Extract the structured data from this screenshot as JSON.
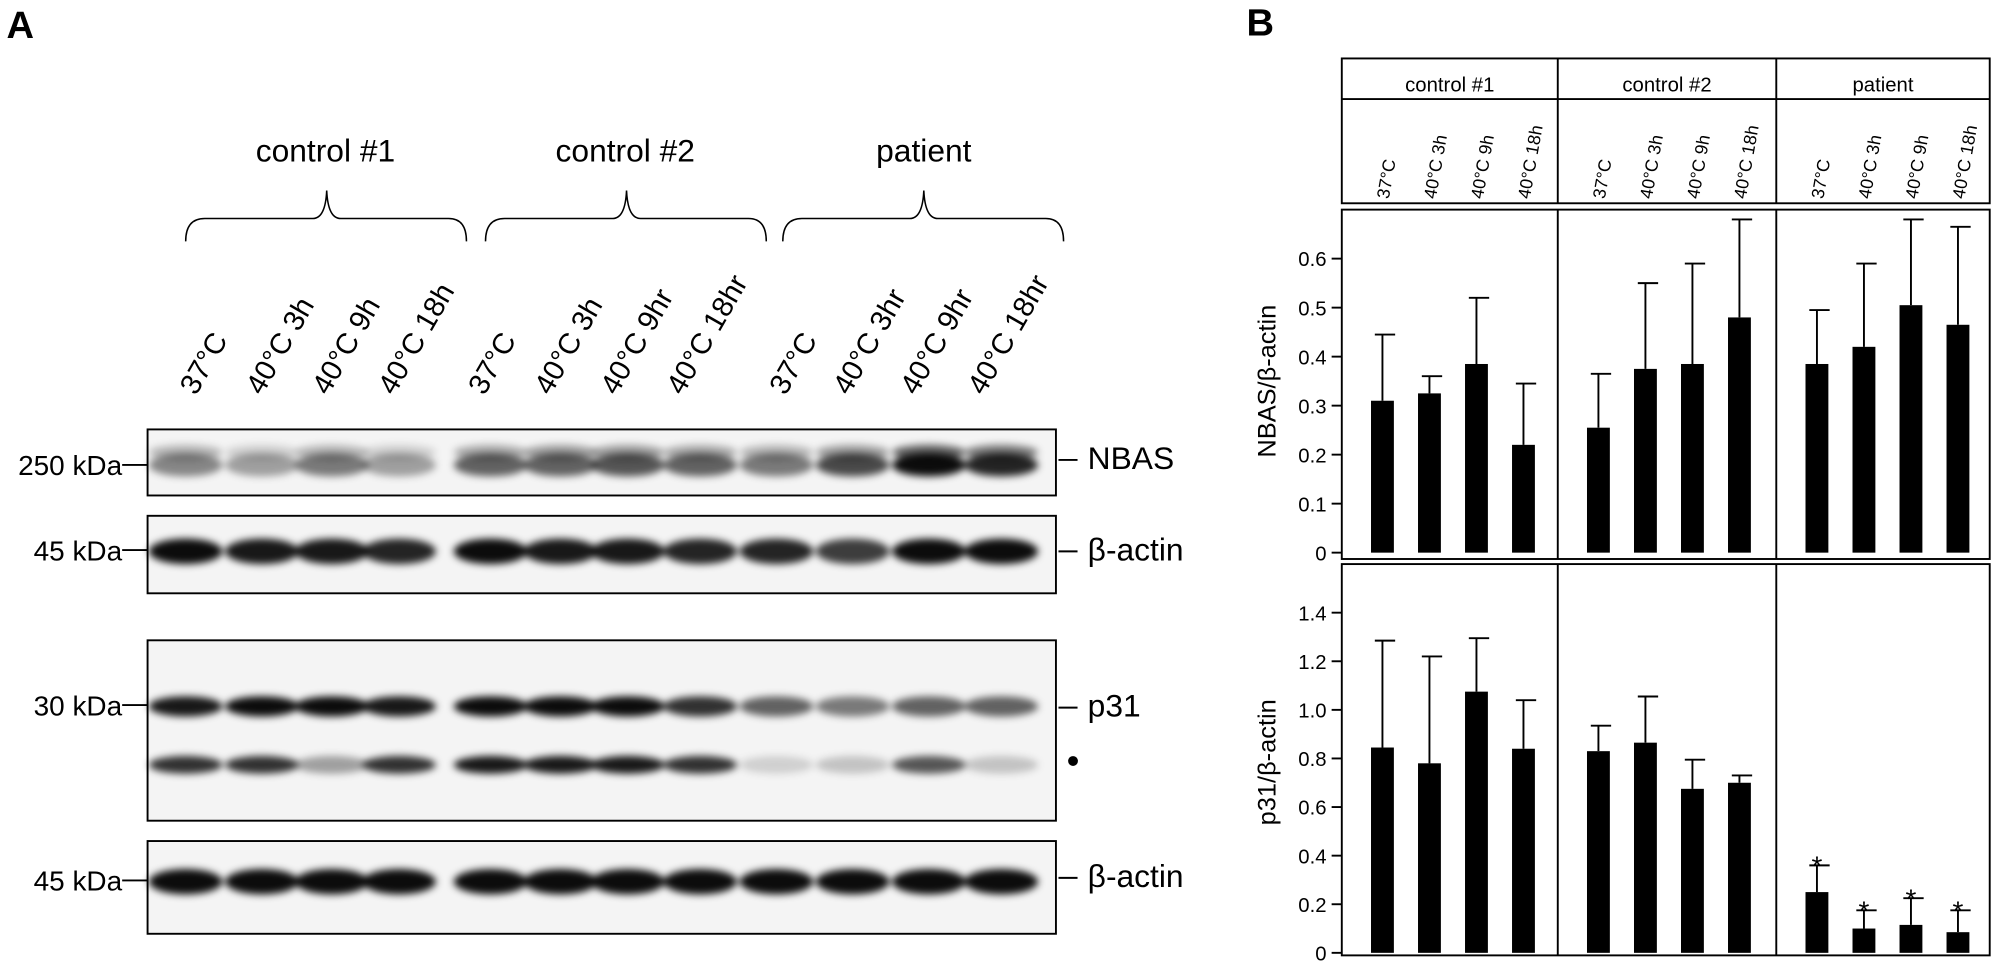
{
  "panel_a": {
    "label": "A",
    "groups": [
      "control #1",
      "control #2",
      "patient"
    ],
    "lanes": [
      "37°C",
      "40°C 3h",
      "40°C 9h",
      "40°C 18h",
      "37°C",
      "40°C 3h",
      "40°C 9hr",
      "40°C 18hr",
      "37°C",
      "40°C 3hr",
      "40°C 9hr",
      "40°C 18hr"
    ],
    "markers": [
      "250 kDa",
      "45 kDa",
      "30 kDa",
      "45 kDa"
    ],
    "blot_labels": [
      "NBAS",
      "β-actin",
      "p31",
      "●",
      "β-actin"
    ]
  },
  "panel_b": {
    "label": "B"
  },
  "chart_data": [
    {
      "type": "bar",
      "ylabel": "NBAS/β-actin",
      "groups": [
        "control #1",
        "control #2",
        "patient"
      ],
      "categories": [
        "37°C",
        "40°C 3h",
        "40°C 9h",
        "40°C 18h",
        "37°C",
        "40°C 3h",
        "40°C 9h",
        "40°C 18h",
        "37°C",
        "40°C 3h",
        "40°C 9h",
        "40°C 18h"
      ],
      "values": [
        0.31,
        0.325,
        0.385,
        0.22,
        0.255,
        0.375,
        0.385,
        0.48,
        0.385,
        0.42,
        0.505,
        0.465
      ],
      "errors": [
        0.135,
        0.035,
        0.135,
        0.125,
        0.11,
        0.175,
        0.205,
        0.2,
        0.11,
        0.17,
        0.175,
        0.2
      ],
      "ylim": [
        0,
        0.7
      ],
      "yticks": [
        0,
        0.1,
        0.2,
        0.3,
        0.4,
        0.5,
        0.6
      ],
      "color": "#000000"
    },
    {
      "type": "bar",
      "ylabel": "p31/β-actin",
      "values": [
        0.845,
        0.78,
        1.075,
        0.84,
        0.83,
        0.865,
        0.675,
        0.7,
        0.25,
        0.1,
        0.115,
        0.085
      ],
      "errors": [
        0.44,
        0.44,
        0.22,
        0.2,
        0.105,
        0.19,
        0.12,
        0.03,
        0.11,
        0.075,
        0.11,
        0.09
      ],
      "significance": [
        null,
        null,
        null,
        null,
        null,
        null,
        null,
        null,
        "*",
        "*",
        "*",
        "*"
      ],
      "ylim": [
        0,
        1.6
      ],
      "yticks": [
        0,
        0.2,
        0.4,
        0.6,
        0.8,
        {
          "value": 1,
          "label": "1.0"
        },
        1.2,
        1.4
      ],
      "color": "#000000"
    }
  ]
}
